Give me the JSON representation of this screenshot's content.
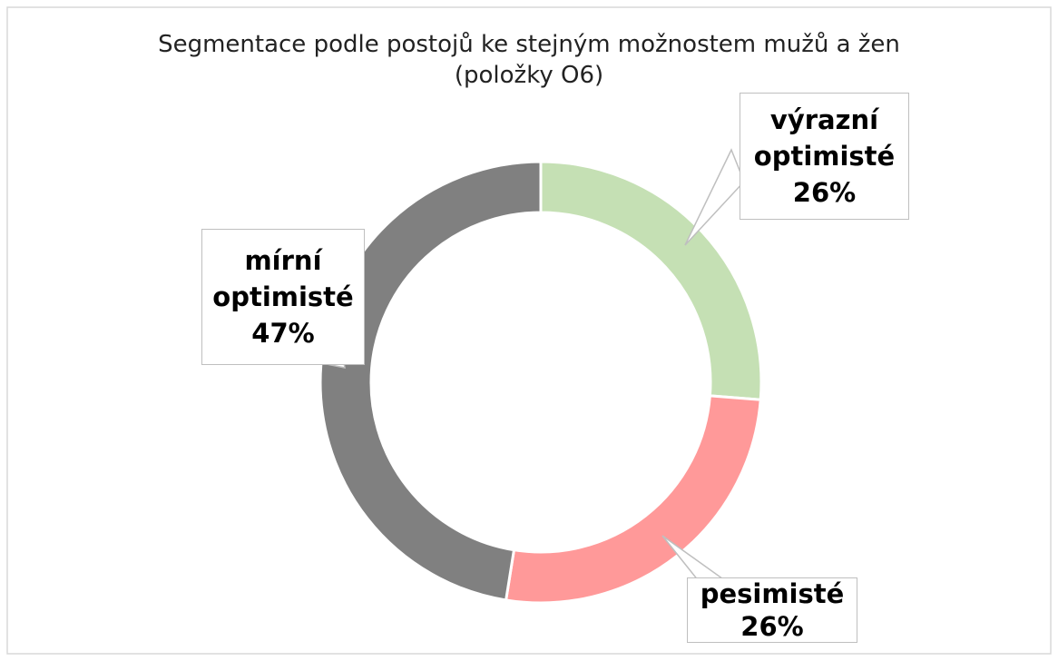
{
  "chart_data": {
    "type": "donut",
    "title": "Segmentace podle postojů ke stejným možnostem mužů a žen (položky O6)",
    "categories": [
      "výrazní optimisté",
      "pesimisté",
      "mírní optimisté"
    ],
    "values": [
      26,
      26,
      47
    ],
    "value_labels": [
      "26%",
      "26%",
      "47%"
    ],
    "colors": [
      "#c5e0b4",
      "#ff9999",
      "#808080"
    ]
  }
}
